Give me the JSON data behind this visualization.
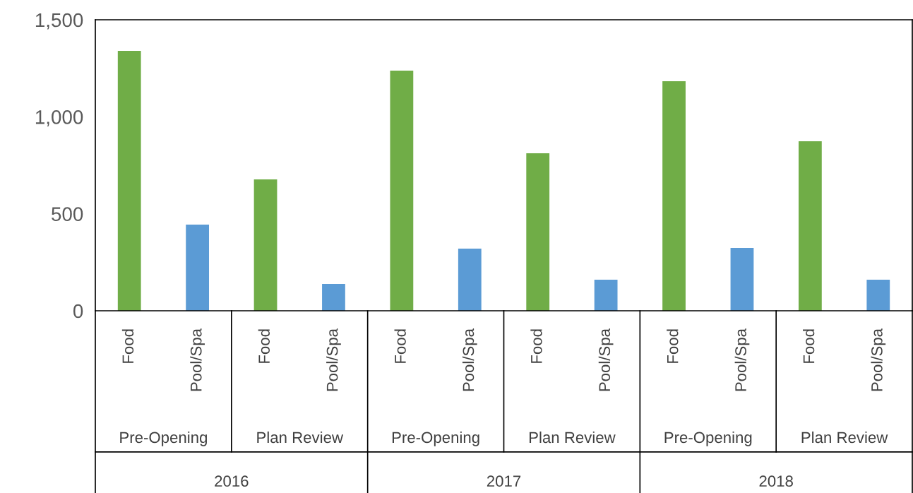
{
  "chart_data": {
    "type": "bar",
    "categories": [
      "Food",
      "Pool/Spa",
      "Food",
      "Pool/Spa",
      "Food",
      "Pool/Spa",
      "Food",
      "Pool/Spa",
      "Food",
      "Pool/Spa",
      "Food",
      "Pool/Spa"
    ],
    "values": [
      1340,
      444,
      677,
      138,
      1238,
      320,
      812,
      160,
      1183,
      324,
      874,
      160
    ],
    "colors": [
      "#70ad47",
      "#5b9bd5",
      "#70ad47",
      "#5b9bd5",
      "#70ad47",
      "#5b9bd5",
      "#70ad47",
      "#5b9bd5",
      "#70ad47",
      "#5b9bd5",
      "#70ad47",
      "#5b9bd5"
    ],
    "ylim": [
      0,
      1500
    ],
    "yticks": [
      0,
      {
        "value": 500,
        "label": "500"
      },
      {
        "value": 1000,
        "label": "1,000"
      },
      {
        "value": 1500,
        "label": "1,500"
      }
    ],
    "grid": false,
    "annotations": [
      "Pre-Opening",
      "Plan Review",
      "Pre-Opening",
      "Plan Review",
      "Pre-Opening",
      "Plan Review",
      "2016",
      "2017",
      "2018"
    ]
  }
}
